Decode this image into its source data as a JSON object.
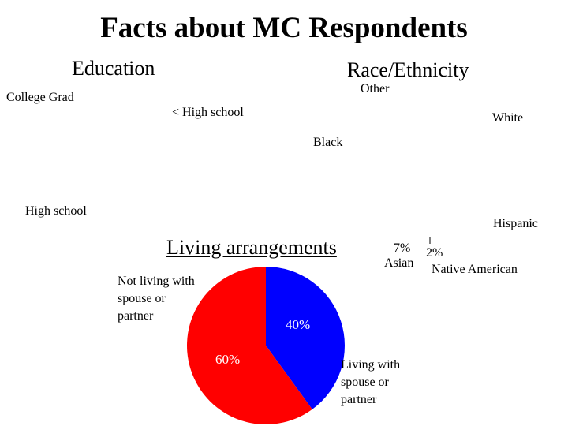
{
  "title": "Facts about MC Respondents",
  "education": {
    "heading": "Education",
    "labels": [
      "College Grad",
      "< High school",
      "High school"
    ]
  },
  "race": {
    "heading": "Race/Ethnicity",
    "labels": [
      "Other",
      "White",
      "Black",
      "Hispanic",
      "Asian",
      "Native American"
    ],
    "values_shown": [
      "7%",
      "2%"
    ]
  },
  "chart_data": {
    "type": "pie",
    "title": "Living arrangements",
    "slices": [
      {
        "label": "Living with spouse or partner",
        "value": 40,
        "value_label": "40%",
        "color": "#0000ff"
      },
      {
        "label": "Not living with spouse or partner",
        "value": 60,
        "value_label": "60%",
        "color": "#ff0000"
      }
    ],
    "start_angle_deg": 0,
    "direction": "clockwise"
  }
}
